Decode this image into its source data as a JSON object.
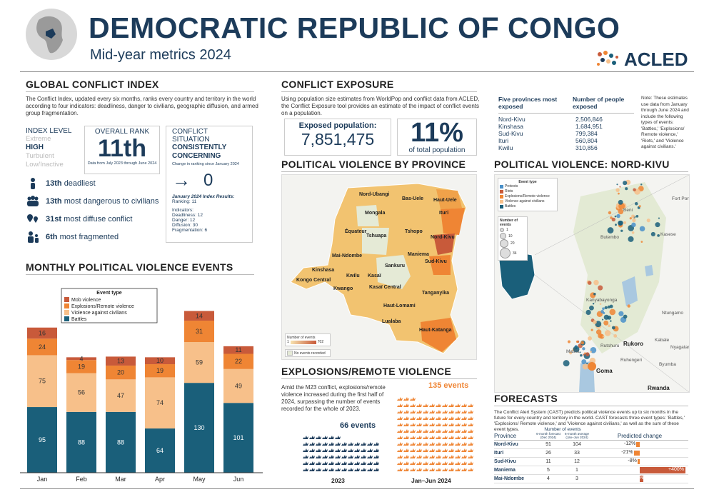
{
  "header": {
    "title": "DEMOCRATIC REPUBLIC OF CONGO",
    "subtitle": "Mid-year metrics 2024",
    "logo": "ACLED"
  },
  "gci": {
    "heading": "GLOBAL CONFLICT INDEX",
    "desc": "The Conflict Index, updated every six months, ranks every country and territory in the world according to four indicators: deadliness, danger to civilians, geographic diffusion, and armed group fragmentation.",
    "index_level_label": "INDEX LEVEL",
    "levels": [
      "Extreme",
      "HIGH",
      "Turbulent",
      "Low/Inactive"
    ],
    "overall_rank_label": "OVERALL RANK",
    "overall_rank": "11th",
    "rank_note": "Data from July 2023 through June 2024",
    "situation_label": "CONFLICT SITUATION",
    "situation": "CONSISTENTLY CONCERNING",
    "situation_note": "Change in ranking since January 2024",
    "change": "0",
    "results_title": "January 2024 Index Results:",
    "results_ranking": "Ranking: 11",
    "ind_title": "Indicators:",
    "ind_deadliness": "Deadliness: 12",
    "ind_danger": "Danger: 12",
    "ind_diffusion": "Diffusion: 30",
    "ind_fragmentation": "Fragmentation: 6",
    "items": [
      {
        "rank": "13th",
        "text": "deadliest"
      },
      {
        "rank": "13th",
        "text": "most dangerous to civilians"
      },
      {
        "rank": "31st",
        "text": "most diffuse conflict"
      },
      {
        "rank": "6th",
        "text": "most fragmented"
      }
    ]
  },
  "monthly": {
    "heading": "MONTHLY POLITICAL VIOLENCE EVENTS",
    "chart_data": {
      "type": "bar",
      "stacked": true,
      "categories": [
        "Jan",
        "Feb",
        "Mar",
        "Apr",
        "May",
        "Jun"
      ],
      "legend_title": "Event type",
      "series": [
        {
          "name": "Battles",
          "color": "#1a5f7a",
          "values": [
            95,
            88,
            88,
            64,
            130,
            101
          ]
        },
        {
          "name": "Violence against civilians",
          "color": "#f7c08a",
          "values": [
            75,
            56,
            47,
            74,
            59,
            49
          ]
        },
        {
          "name": "Explosions/Remote violence",
          "color": "#ef8534",
          "values": [
            24,
            19,
            20,
            19,
            31,
            22
          ]
        },
        {
          "name": "Mob violence",
          "color": "#c85a3a",
          "values": [
            16,
            4,
            13,
            10,
            14,
            11
          ]
        }
      ],
      "ylim": [
        0,
        250
      ]
    }
  },
  "exposure": {
    "heading": "CONFLICT EXPOSURE",
    "desc": "Using population size estimates from WorldPop and conflict data from ACLED, the Conflict Exposure tool provides an estimate of the impact of conflict events on a population.",
    "exposed_label": "Exposed population:",
    "exposed_value": "7,851,475",
    "pct": "11%",
    "pct_label": "of total population",
    "table_h1": "Five provinces most exposed",
    "table_h2": "Number of people exposed",
    "rows": [
      {
        "province": "Nord-Kivu",
        "value": "2,506,846"
      },
      {
        "province": "Kinshasa",
        "value": "1,684,951"
      },
      {
        "province": "Sud-Kivu",
        "value": "799,384"
      },
      {
        "province": "Ituri",
        "value": "560,804"
      },
      {
        "province": "Kwilu",
        "value": "310,856"
      }
    ],
    "note": "Note: These estimates use data from January through June 2024 and include the following types of events: 'Battles,' 'Explosions/ Remote violence,' 'Riots,' and 'Violence against civilians.'"
  },
  "pv_province": {
    "heading": "POLITICAL VIOLENCE BY PROVINCE",
    "provinces": [
      "Nord-Ubangi",
      "Bas-Uele",
      "Haut-Uele",
      "Mongala",
      "Ituri",
      "Équateur",
      "Tshuapa",
      "Tshopo",
      "Nord-Kivu",
      "Mai-Ndombe",
      "Maniema",
      "Sankuru",
      "Sud-Kivu",
      "Kinshasa",
      "Kwilu",
      "Kasaï",
      "Kongo Central",
      "Kwango",
      "Kasaï Central",
      "Tanganyika",
      "Haut-Lomami",
      "Lualaba",
      "Haut-Katanga"
    ],
    "legend_title": "Number of events",
    "legend_min": "1",
    "legend_max": "702",
    "legend_none": "No events recorded"
  },
  "pv_nordkivu": {
    "heading": "POLITICAL VIOLENCE: NORD-KIVU",
    "legend_title": "Event type",
    "event_types": [
      "Protests",
      "Riots",
      "Explosions/Remote violence",
      "Violence against civilians",
      "Battles"
    ],
    "size_title": "Number of events",
    "sizes": [
      "1",
      "10",
      "20",
      "34"
    ],
    "places": [
      "Beni",
      "Butembo",
      "Kasese",
      "Fort Portal",
      "Kanyabayonga",
      "Ntungamo",
      "Rukoro",
      "Kabale",
      "Masisi",
      "Rutshuru",
      "Nyagatare",
      "Ruhengeri",
      "Goma",
      "Byumba",
      "Rwanda"
    ]
  },
  "explosions": {
    "heading": "EXPLOSIONS/REMOTE VIOLENCE",
    "desc": "Amid the M23 conflict, explosions/remote violence increased during the first half of 2024, surpassing the number of events recorded for the whole of 2023.",
    "count_2023": 66,
    "count_2024": 135,
    "label_2023": "66 events",
    "label_2024": "135 events",
    "year_2023": "2023",
    "year_2024": "Jan–Jun 2024"
  },
  "forecasts": {
    "heading": "FORECASTS",
    "desc": "The Conflict Alert System (CAST) predicts political violence events up to six months in the future for every country and territory in the world. CAST forecasts three event types: 'Battles,' 'Explosions/ Remote violence,' and 'Violence against civilians,' as well as the sum of these event types.",
    "col_province": "Province",
    "col_events": "Number of events",
    "col_forecast": "6-month forecast (Dec 2024)",
    "col_average": "6-month average (Jan–Jun 2024)",
    "col_change": "Predicted change",
    "rows": [
      {
        "province": "Nord-Kivu",
        "forecast": "91",
        "average": "104",
        "change": "-12%",
        "pct": -12
      },
      {
        "province": "Ituri",
        "forecast": "26",
        "average": "33",
        "change": "-21%",
        "pct": -21
      },
      {
        "province": "Sud-Kivu",
        "forecast": "11",
        "average": "12",
        "change": "-8%",
        "pct": -8
      },
      {
        "province": "Maniema",
        "forecast": "5",
        "average": "1",
        "change": "+400%",
        "pct": 400
      },
      {
        "province": "Mai-Ndombe",
        "forecast": "4",
        "average": "3",
        "change": "+33%",
        "pct": 33
      }
    ]
  },
  "colors": {
    "navy": "#1c3b5a",
    "teal": "#1a5f7a",
    "orange": "#ef8534",
    "red": "#c85a3a",
    "light": "#f7c08a"
  }
}
